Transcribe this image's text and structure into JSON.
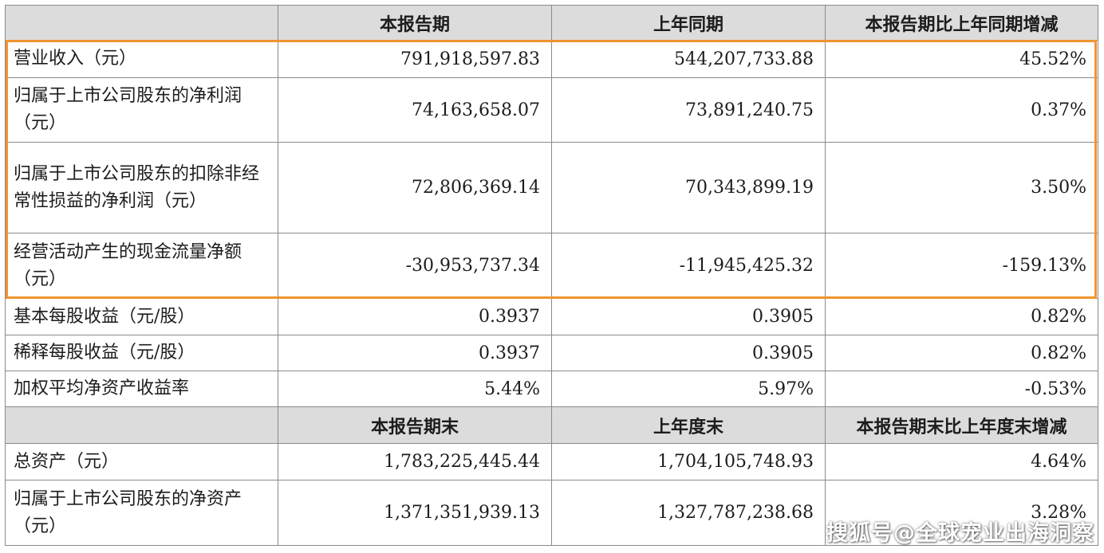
{
  "header1": [
    "本报告期",
    "上年同期",
    "本报告期比上年同期增减"
  ],
  "rows1": [
    {
      "label": "营业收入（元）",
      "current": "791,918,597.83",
      "previous": "544,207,733.88",
      "change": "45.52%"
    },
    {
      "label": "归属于上市公司股东的净利润（元）",
      "current": "74,163,658.07",
      "previous": "73,891,240.75",
      "change": "0.37%"
    },
    {
      "label": "归属于上市公司股东的扣除非经常性损益的净利润（元）",
      "current": "72,806,369.14",
      "previous": "70,343,899.19",
      "change": "3.50%"
    },
    {
      "label": "经营活动产生的现金流量净额（元）",
      "current": "-30,953,737.34",
      "previous": "-11,945,425.32",
      "change": "-159.13%"
    },
    {
      "label": "基本每股收益（元/股）",
      "current": "0.3937",
      "previous": "0.3905",
      "change": "0.82%"
    },
    {
      "label": "稀释每股收益（元/股）",
      "current": "0.3937",
      "previous": "0.3905",
      "change": "0.82%"
    },
    {
      "label": "加权平均净资产收益率",
      "current": "5.44%",
      "previous": "5.97%",
      "change": "-0.53%"
    }
  ],
  "header2": [
    "本报告期末",
    "上年度末",
    "本报告期末比上年度末增减"
  ],
  "rows2": [
    {
      "label": "总资产（元）",
      "current": "1,783,225,445.44",
      "previous": "1,704,105,748.93",
      "change": "4.64%"
    },
    {
      "label": "归属于上市公司股东的净资产（元）",
      "current": "1,371,351,939.13",
      "previous": "1,327,787,238.68",
      "change": "3.28%"
    }
  ],
  "watermark": "搜狐号@全球宠业出海洞察",
  "colors": {
    "highlight": "#f0932f",
    "header_bg": "#dcdcdc",
    "border": "#8a8a8a"
  }
}
